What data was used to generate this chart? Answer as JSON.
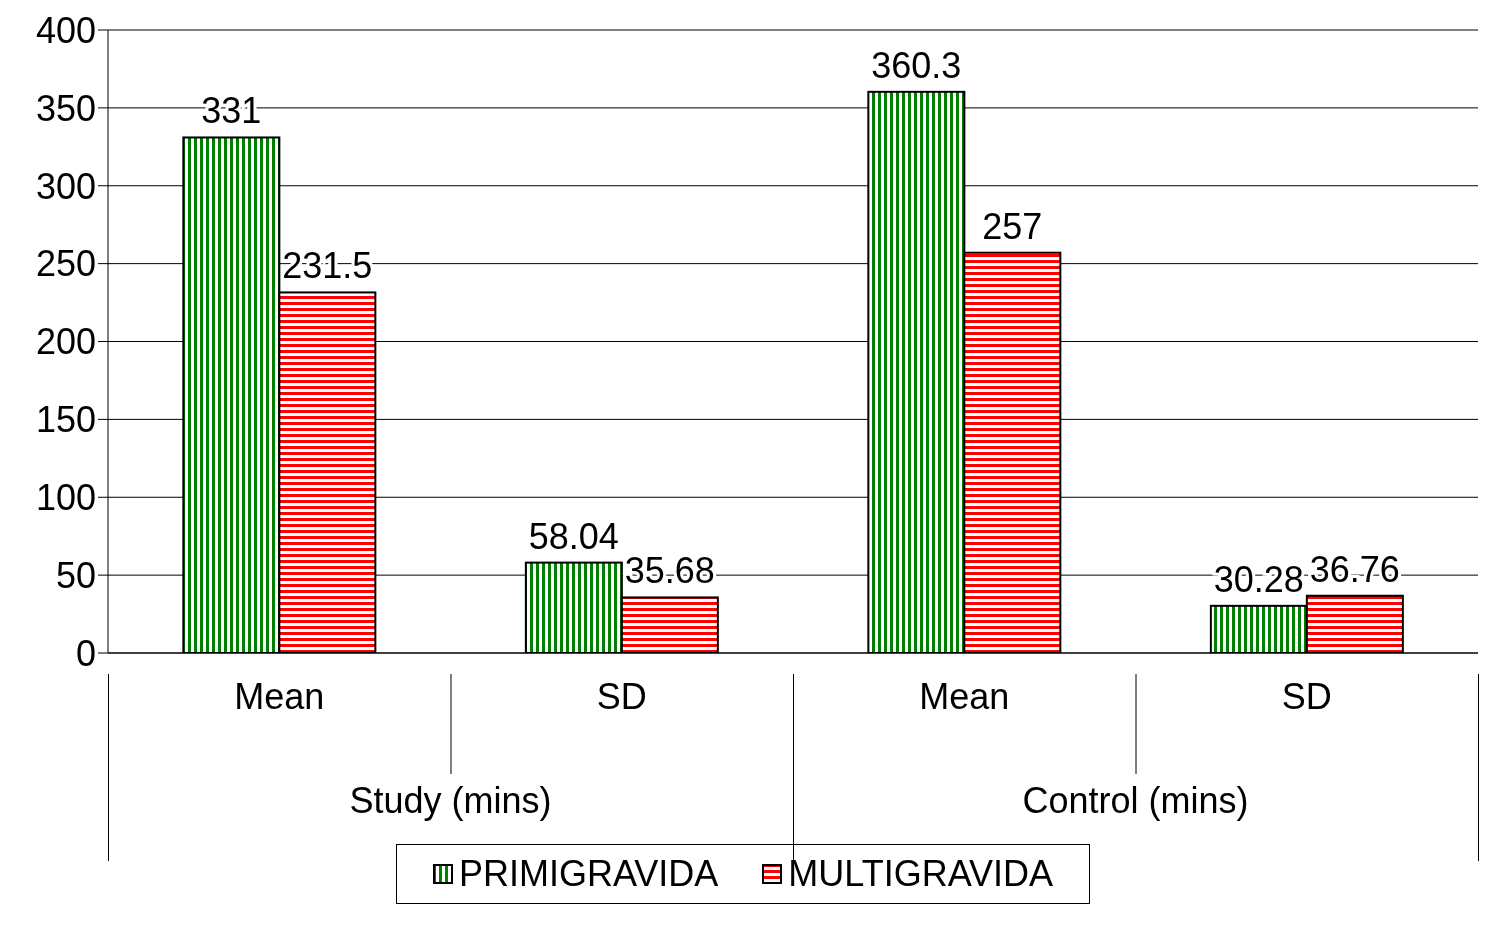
{
  "chart_data": {
    "type": "bar",
    "categories": [
      "Mean",
      "SD",
      "Mean",
      "SD"
    ],
    "series": [
      {
        "name": "PRIMIGRAVIDA",
        "color": "#008000",
        "values": [
          331,
          58.04,
          360.3,
          30.28
        ]
      },
      {
        "name": "MULTIGRAVIDA",
        "color": "#ff0000",
        "values": [
          231.5,
          35.68,
          257,
          36.76
        ]
      }
    ],
    "annotations": [
      "Study (mins)",
      "Control (mins)"
    ],
    "ylim": [
      0,
      400
    ],
    "yticks": [
      0,
      50,
      100,
      150,
      200,
      250,
      300,
      350,
      400
    ],
    "grid": "y",
    "legend": "bottom",
    "data_labels": true
  }
}
